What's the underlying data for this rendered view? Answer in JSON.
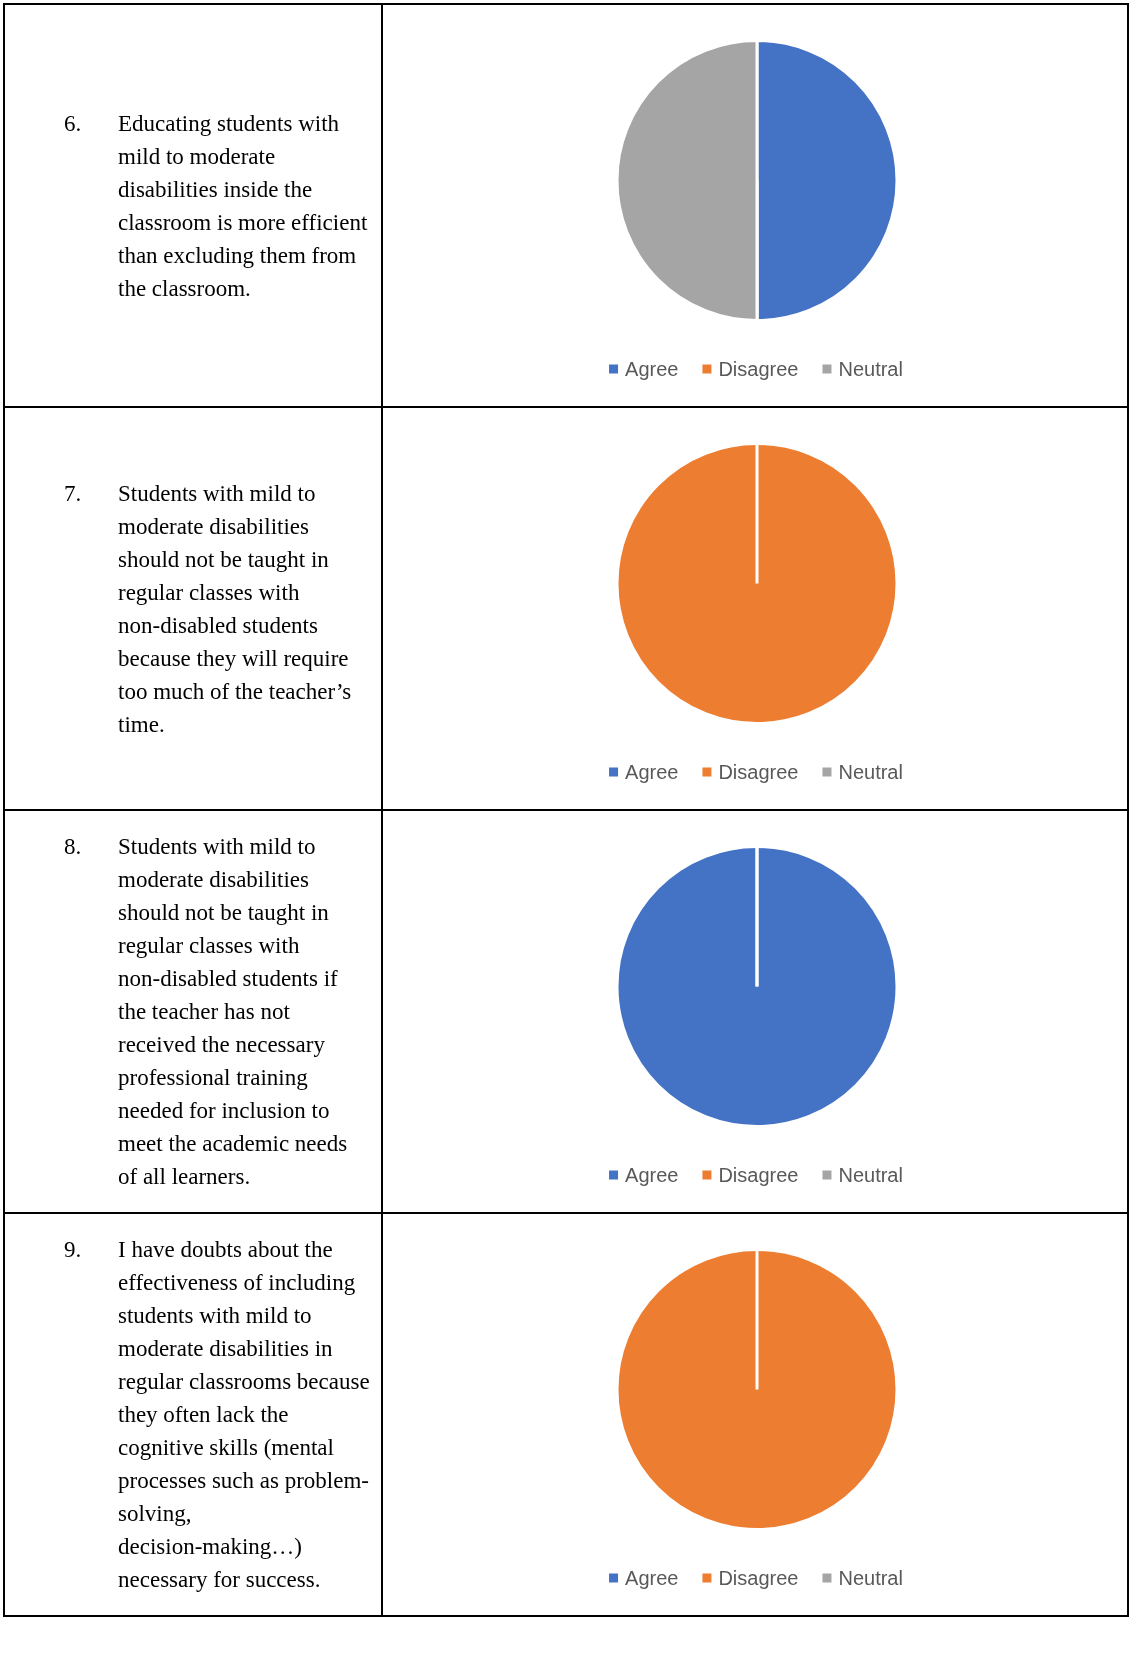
{
  "chart_data": [
    {
      "type": "pie",
      "title": "6. Educating students with mild to moderate disabilities inside the classroom is more efficient than excluding them from the classroom.",
      "categories": [
        "Agree",
        "Disagree",
        "Neutral"
      ],
      "values": [
        50,
        0,
        50
      ],
      "colors": [
        "#4472c4",
        "#ed7d31",
        "#a5a5a5"
      ],
      "legend": "bottom"
    },
    {
      "type": "pie",
      "title": "7. Students with mild to moderate disabilities should not be taught in regular classes with non-disabled students because they will require too much of the teacher’s time.",
      "categories": [
        "Agree",
        "Disagree",
        "Neutral"
      ],
      "values": [
        0,
        100,
        0
      ],
      "colors": [
        "#4472c4",
        "#ed7d31",
        "#a5a5a5"
      ],
      "legend": "bottom"
    },
    {
      "type": "pie",
      "title": "8. Students with mild to moderate disabilities should not be taught in regular classes with non-disabled students if the teacher has not received the necessary professional training needed for inclusion to meet the academic needs of all learners.",
      "categories": [
        "Agree",
        "Disagree",
        "Neutral"
      ],
      "values": [
        100,
        0,
        0
      ],
      "colors": [
        "#4472c4",
        "#ed7d31",
        "#a5a5a5"
      ],
      "legend": "bottom"
    },
    {
      "type": "pie",
      "title": "9. I have doubts about the effectiveness of including students with mild to moderate disabilities in regular classrooms because they often lack the cognitive skills (mental processes such as problem- solving, decision-making…) necessary for success.",
      "categories": [
        "Agree",
        "Disagree",
        "Neutral"
      ],
      "values": [
        0,
        100,
        0
      ],
      "colors": [
        "#4472c4",
        "#ed7d31",
        "#a5a5a5"
      ],
      "legend": "bottom"
    }
  ]
}
